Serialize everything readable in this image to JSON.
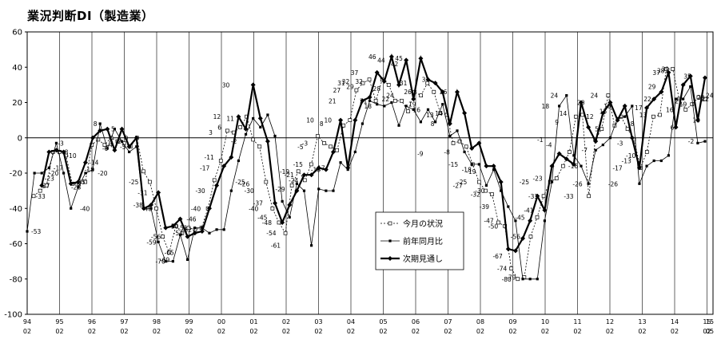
{
  "chart_data": {
    "type": "line",
    "title": "業況判断DI（製造業）",
    "ylim": [
      -100,
      60
    ],
    "yticks": [
      60,
      40,
      20,
      0,
      -20,
      -40,
      -60,
      -80,
      -100
    ],
    "grid": "vertical lines at each year; horizontal line at 0",
    "legend_position": "center-right",
    "x_year_labels": [
      "94",
      "95",
      "96",
      "97",
      "98",
      "99",
      "00",
      "01",
      "02",
      "03",
      "04",
      "05",
      "06",
      "07",
      "08",
      "09",
      "10",
      "11",
      "12",
      "13",
      "14",
      "15",
      "15"
    ],
    "x_month_labels": [
      "02",
      "02",
      "02",
      "02",
      "02",
      "02",
      "02",
      "02",
      "02",
      "02",
      "02",
      "02",
      "02",
      "02",
      "02",
      "02",
      "02",
      "02",
      "02",
      "02",
      "02",
      "02",
      "05"
    ],
    "series": [
      {
        "name": "今月の状況",
        "marker": "open-square",
        "style": "dashed",
        "values": [
          null,
          -33,
          -30,
          -27,
          -8,
          -8,
          -10,
          -26,
          -26,
          -25,
          -4,
          -1,
          -4,
          0,
          -2,
          -3,
          -5,
          0,
          -19,
          -25,
          -40,
          -56,
          -65,
          -50,
          -54,
          -51,
          -52,
          -51,
          -40,
          -24,
          -13,
          4,
          3,
          6,
          12,
          -1,
          -5,
          -25,
          -40,
          -48,
          -54,
          -27,
          -19,
          -24,
          -15,
          1,
          -3,
          -5,
          -7,
          7,
          10,
          27,
          31,
          33,
          21,
          33,
          30,
          21,
          21,
          15,
          26,
          24,
          31,
          26,
          14,
          13,
          -3,
          -2,
          -5,
          -15,
          -25,
          -30,
          -32,
          -48,
          -50,
          -74,
          -80,
          -79,
          -56,
          -45,
          -33,
          -25,
          -23,
          -16,
          -8,
          12,
          13,
          -33,
          -1,
          5,
          24,
          7,
          12,
          5,
          -1,
          -17,
          -8,
          12,
          13,
          39,
          39,
          22,
          16,
          19,
          23,
          22
        ]
      },
      {
        "name": "前年同月比",
        "marker": "filled-square",
        "style": "thin",
        "values": [
          -53,
          -20,
          -20,
          -17,
          -3,
          -20,
          -40,
          -28,
          -20,
          -18,
          8,
          -6,
          5,
          -2,
          -8,
          -5,
          -40,
          -40,
          -59,
          -70,
          -70,
          -55,
          -69,
          -51,
          -51,
          -54,
          -52,
          -52,
          -30,
          -13,
          2,
          11,
          6,
          13,
          1,
          -36,
          -45,
          -26,
          -30,
          -61,
          -29,
          -30,
          -30,
          -14,
          -18,
          -8,
          8,
          21,
          19,
          18,
          20,
          7,
          18,
          16,
          9,
          16,
          9,
          19,
          1,
          4,
          -8,
          -15,
          -15,
          -27,
          -18,
          -30,
          -39,
          -47,
          -80,
          -80,
          -80,
          -47,
          -25,
          18,
          24,
          -10,
          -16,
          -26,
          -7,
          -4,
          0,
          11,
          12,
          18,
          -26,
          -16,
          -13,
          -13,
          -10,
          22,
          22,
          29,
          -3,
          -2
        ]
      },
      {
        "name": "次期見通し",
        "marker": "diamond",
        "style": "bold",
        "values": [
          null,
          null,
          -27,
          -8,
          -7,
          -8,
          -26,
          -25,
          -14,
          0,
          4,
          5,
          -7,
          5,
          -5,
          0,
          -40,
          -38,
          -31,
          -51,
          -50,
          -46,
          -56,
          -54,
          -53,
          -40,
          -27,
          -16,
          -11,
          12,
          5,
          30,
          11,
          -2,
          -37,
          -48,
          -38,
          -30,
          -21,
          -21,
          -17,
          -18,
          -8,
          10,
          -17,
          10,
          21,
          23,
          37,
          32,
          46,
          30,
          44,
          22,
          45,
          33,
          31,
          26,
          8,
          26,
          14,
          -6,
          -3,
          -16,
          -16,
          -25,
          -63,
          -64,
          -57,
          -47,
          -33,
          -41,
          -16,
          -9,
          -12,
          -15,
          20,
          6,
          -2,
          14,
          20,
          10,
          18,
          0,
          -17,
          17,
          22,
          26,
          37,
          6,
          30,
          35,
          10,
          34
        ]
      }
    ],
    "point_labels": [
      "-53",
      "-33",
      "-27",
      "-23",
      "-20",
      "-17",
      "-3",
      "-8",
      "-10",
      "-28",
      "-25",
      "-40",
      "-18",
      "-14",
      "8",
      "-20",
      "-6",
      "-4",
      "5",
      "-2",
      "-5",
      "0",
      "-25",
      "-38",
      "-31",
      "-40",
      "-59",
      "-56",
      "-70",
      "-69",
      "-65",
      "-50",
      "-54",
      "-51",
      "-52",
      "-46",
      "-40",
      "-30",
      "-17",
      "-11",
      "3",
      "12",
      "6",
      "30",
      "11",
      "-2",
      "-25",
      "-26",
      "-30",
      "-40",
      "-37",
      "-45",
      "-48",
      "-54",
      "-61",
      "-29",
      "-19",
      "-21",
      "-24",
      "-15",
      "-5",
      "-3",
      "10",
      "-18",
      "-17",
      "8",
      "10",
      "21",
      "27",
      "31",
      "32",
      "29",
      "37",
      "32",
      "21",
      "18",
      "46",
      "28",
      "44",
      "22",
      "24",
      "42",
      "45",
      "31",
      "26",
      "19",
      "16",
      "-9",
      "33",
      "13",
      "8",
      "14",
      "26",
      "-8",
      "-15",
      "-27",
      "-25",
      "-18",
      "-19",
      "-32",
      "-30",
      "-39",
      "-47",
      "-50",
      "-67",
      "-74",
      "-80",
      "-79",
      "-56",
      "-45",
      "-25",
      "-41",
      "-33",
      "-23",
      "-1",
      "18",
      "-4",
      "24",
      "9",
      "14",
      "-33",
      "-16",
      "-26",
      "20",
      "-7",
      "12",
      "24",
      "5",
      "15",
      "18",
      "-26",
      "-17",
      "-3",
      "-13",
      "-10",
      "8",
      "17",
      "13",
      "22",
      "29",
      "37",
      "38",
      "39",
      "16",
      "6",
      "21",
      "19",
      "35",
      "-2",
      "10",
      "23",
      "22",
      "24"
    ],
    "legend_labels": [
      "今月の状況",
      "前年同月比",
      "次期見通し"
    ]
  }
}
